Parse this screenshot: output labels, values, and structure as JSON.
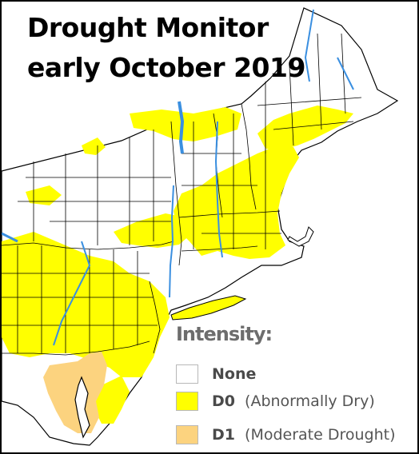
{
  "title": {
    "line1": "Drought Monitor",
    "line2": "early October 2019"
  },
  "legend": {
    "title": "Intensity:",
    "items": [
      {
        "code": "None",
        "description": "",
        "color": "#ffffff"
      },
      {
        "code": "D0",
        "description": "(Abnormally Dry)",
        "color": "#ffff00"
      },
      {
        "code": "D1",
        "description": "(Moderate Drought)",
        "color": "#fcd37f"
      }
    ]
  },
  "colors": {
    "background": "#ffffff",
    "land": "#ffffff",
    "d0": "#ffff00",
    "d1": "#fcd37f",
    "water": "#3a8fe0",
    "county_lines": "#000000"
  }
}
